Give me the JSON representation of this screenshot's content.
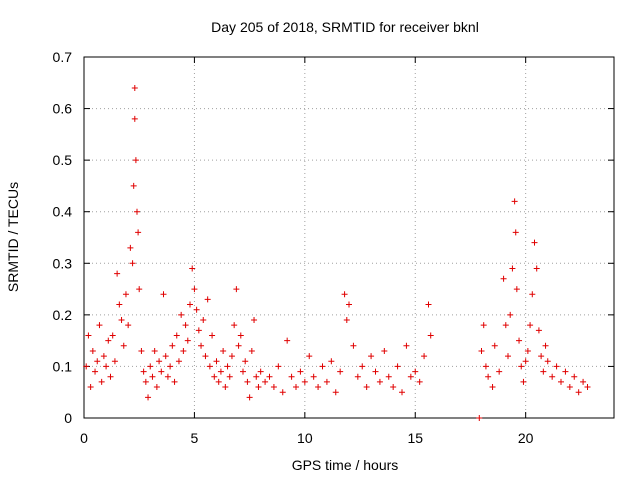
{
  "chart_data": {
    "type": "scatter",
    "title": "Day 205 of 2018, SRMTID for receiver bknl",
    "xlabel": "GPS time / hours",
    "ylabel": "SRMTID / TECUs",
    "xlim": [
      0,
      24
    ],
    "ylim": [
      0,
      0.7
    ],
    "xticks": [
      0,
      5,
      10,
      15,
      20
    ],
    "yticks": [
      0,
      0.1,
      0.2,
      0.3,
      0.4,
      0.5,
      0.6,
      0.7
    ],
    "xtick_labels": [
      "0",
      "5",
      "10",
      "15",
      "20"
    ],
    "ytick_labels": [
      "0",
      "0.1",
      "0.2",
      "0.3",
      "0.4",
      "0.5",
      "0.6",
      "0.7"
    ],
    "grid": true,
    "marker": "+",
    "color": "#e00000",
    "series": [
      {
        "name": "SRMTID",
        "points": [
          [
            0.1,
            0.1
          ],
          [
            0.2,
            0.16
          ],
          [
            0.3,
            0.06
          ],
          [
            0.4,
            0.13
          ],
          [
            0.5,
            0.09
          ],
          [
            0.6,
            0.11
          ],
          [
            0.7,
            0.18
          ],
          [
            0.8,
            0.07
          ],
          [
            0.9,
            0.12
          ],
          [
            1.0,
            0.1
          ],
          [
            1.1,
            0.15
          ],
          [
            1.2,
            0.08
          ],
          [
            1.3,
            0.16
          ],
          [
            1.4,
            0.11
          ],
          [
            1.5,
            0.28
          ],
          [
            1.6,
            0.22
          ],
          [
            1.7,
            0.19
          ],
          [
            1.8,
            0.14
          ],
          [
            1.9,
            0.24
          ],
          [
            2.0,
            0.18
          ],
          [
            2.1,
            0.33
          ],
          [
            2.2,
            0.3
          ],
          [
            2.25,
            0.45
          ],
          [
            2.3,
            0.64
          ],
          [
            2.3,
            0.58
          ],
          [
            2.35,
            0.5
          ],
          [
            2.4,
            0.4
          ],
          [
            2.45,
            0.36
          ],
          [
            2.5,
            0.25
          ],
          [
            2.6,
            0.13
          ],
          [
            2.7,
            0.09
          ],
          [
            2.8,
            0.07
          ],
          [
            2.9,
            0.04
          ],
          [
            3.0,
            0.1
          ],
          [
            3.1,
            0.08
          ],
          [
            3.2,
            0.13
          ],
          [
            3.3,
            0.06
          ],
          [
            3.4,
            0.11
          ],
          [
            3.5,
            0.09
          ],
          [
            3.6,
            0.24
          ],
          [
            3.7,
            0.12
          ],
          [
            3.8,
            0.08
          ],
          [
            3.9,
            0.1
          ],
          [
            4.0,
            0.14
          ],
          [
            4.1,
            0.07
          ],
          [
            4.2,
            0.16
          ],
          [
            4.3,
            0.11
          ],
          [
            4.4,
            0.2
          ],
          [
            4.5,
            0.13
          ],
          [
            4.6,
            0.18
          ],
          [
            4.7,
            0.15
          ],
          [
            4.8,
            0.22
          ],
          [
            4.9,
            0.29
          ],
          [
            5.0,
            0.25
          ],
          [
            5.1,
            0.21
          ],
          [
            5.2,
            0.17
          ],
          [
            5.3,
            0.14
          ],
          [
            5.4,
            0.19
          ],
          [
            5.5,
            0.12
          ],
          [
            5.6,
            0.23
          ],
          [
            5.7,
            0.1
          ],
          [
            5.8,
            0.16
          ],
          [
            5.9,
            0.08
          ],
          [
            6.0,
            0.11
          ],
          [
            6.1,
            0.07
          ],
          [
            6.2,
            0.09
          ],
          [
            6.3,
            0.13
          ],
          [
            6.4,
            0.06
          ],
          [
            6.5,
            0.1
          ],
          [
            6.6,
            0.08
          ],
          [
            6.7,
            0.12
          ],
          [
            6.8,
            0.18
          ],
          [
            6.9,
            0.25
          ],
          [
            7.0,
            0.14
          ],
          [
            7.1,
            0.16
          ],
          [
            7.2,
            0.09
          ],
          [
            7.3,
            0.11
          ],
          [
            7.4,
            0.07
          ],
          [
            7.5,
            0.04
          ],
          [
            7.6,
            0.13
          ],
          [
            7.7,
            0.19
          ],
          [
            7.8,
            0.08
          ],
          [
            7.9,
            0.06
          ],
          [
            8.0,
            0.09
          ],
          [
            8.2,
            0.07
          ],
          [
            8.4,
            0.08
          ],
          [
            8.6,
            0.06
          ],
          [
            8.8,
            0.1
          ],
          [
            9.0,
            0.05
          ],
          [
            9.2,
            0.15
          ],
          [
            9.4,
            0.08
          ],
          [
            9.6,
            0.06
          ],
          [
            9.8,
            0.09
          ],
          [
            10.0,
            0.07
          ],
          [
            10.2,
            0.12
          ],
          [
            10.4,
            0.08
          ],
          [
            10.6,
            0.06
          ],
          [
            10.8,
            0.1
          ],
          [
            11.0,
            0.07
          ],
          [
            11.2,
            0.11
          ],
          [
            11.4,
            0.05
          ],
          [
            11.6,
            0.09
          ],
          [
            11.8,
            0.24
          ],
          [
            11.9,
            0.19
          ],
          [
            12.0,
            0.22
          ],
          [
            12.2,
            0.14
          ],
          [
            12.4,
            0.08
          ],
          [
            12.6,
            0.1
          ],
          [
            12.8,
            0.06
          ],
          [
            13.0,
            0.12
          ],
          [
            13.2,
            0.09
          ],
          [
            13.4,
            0.07
          ],
          [
            13.6,
            0.13
          ],
          [
            13.8,
            0.08
          ],
          [
            14.0,
            0.06
          ],
          [
            14.2,
            0.1
          ],
          [
            14.4,
            0.05
          ],
          [
            14.6,
            0.14
          ],
          [
            14.8,
            0.08
          ],
          [
            15.0,
            0.09
          ],
          [
            15.2,
            0.07
          ],
          [
            15.4,
            0.12
          ],
          [
            15.6,
            0.22
          ],
          [
            15.7,
            0.16
          ],
          [
            17.9,
            0.0
          ],
          [
            18.0,
            0.13
          ],
          [
            18.1,
            0.18
          ],
          [
            18.2,
            0.1
          ],
          [
            18.3,
            0.08
          ],
          [
            18.5,
            0.06
          ],
          [
            18.6,
            0.14
          ],
          [
            18.8,
            0.09
          ],
          [
            19.0,
            0.27
          ],
          [
            19.1,
            0.18
          ],
          [
            19.2,
            0.12
          ],
          [
            19.3,
            0.2
          ],
          [
            19.4,
            0.29
          ],
          [
            19.5,
            0.42
          ],
          [
            19.55,
            0.36
          ],
          [
            19.6,
            0.25
          ],
          [
            19.7,
            0.15
          ],
          [
            19.8,
            0.1
          ],
          [
            19.9,
            0.07
          ],
          [
            20.0,
            0.11
          ],
          [
            20.1,
            0.13
          ],
          [
            20.2,
            0.18
          ],
          [
            20.3,
            0.24
          ],
          [
            20.4,
            0.34
          ],
          [
            20.5,
            0.29
          ],
          [
            20.6,
            0.17
          ],
          [
            20.7,
            0.12
          ],
          [
            20.8,
            0.09
          ],
          [
            20.9,
            0.14
          ],
          [
            21.0,
            0.11
          ],
          [
            21.2,
            0.08
          ],
          [
            21.4,
            0.1
          ],
          [
            21.6,
            0.07
          ],
          [
            21.8,
            0.09
          ],
          [
            22.0,
            0.06
          ],
          [
            22.2,
            0.08
          ],
          [
            22.4,
            0.05
          ],
          [
            22.6,
            0.07
          ],
          [
            22.8,
            0.06
          ]
        ]
      }
    ]
  }
}
